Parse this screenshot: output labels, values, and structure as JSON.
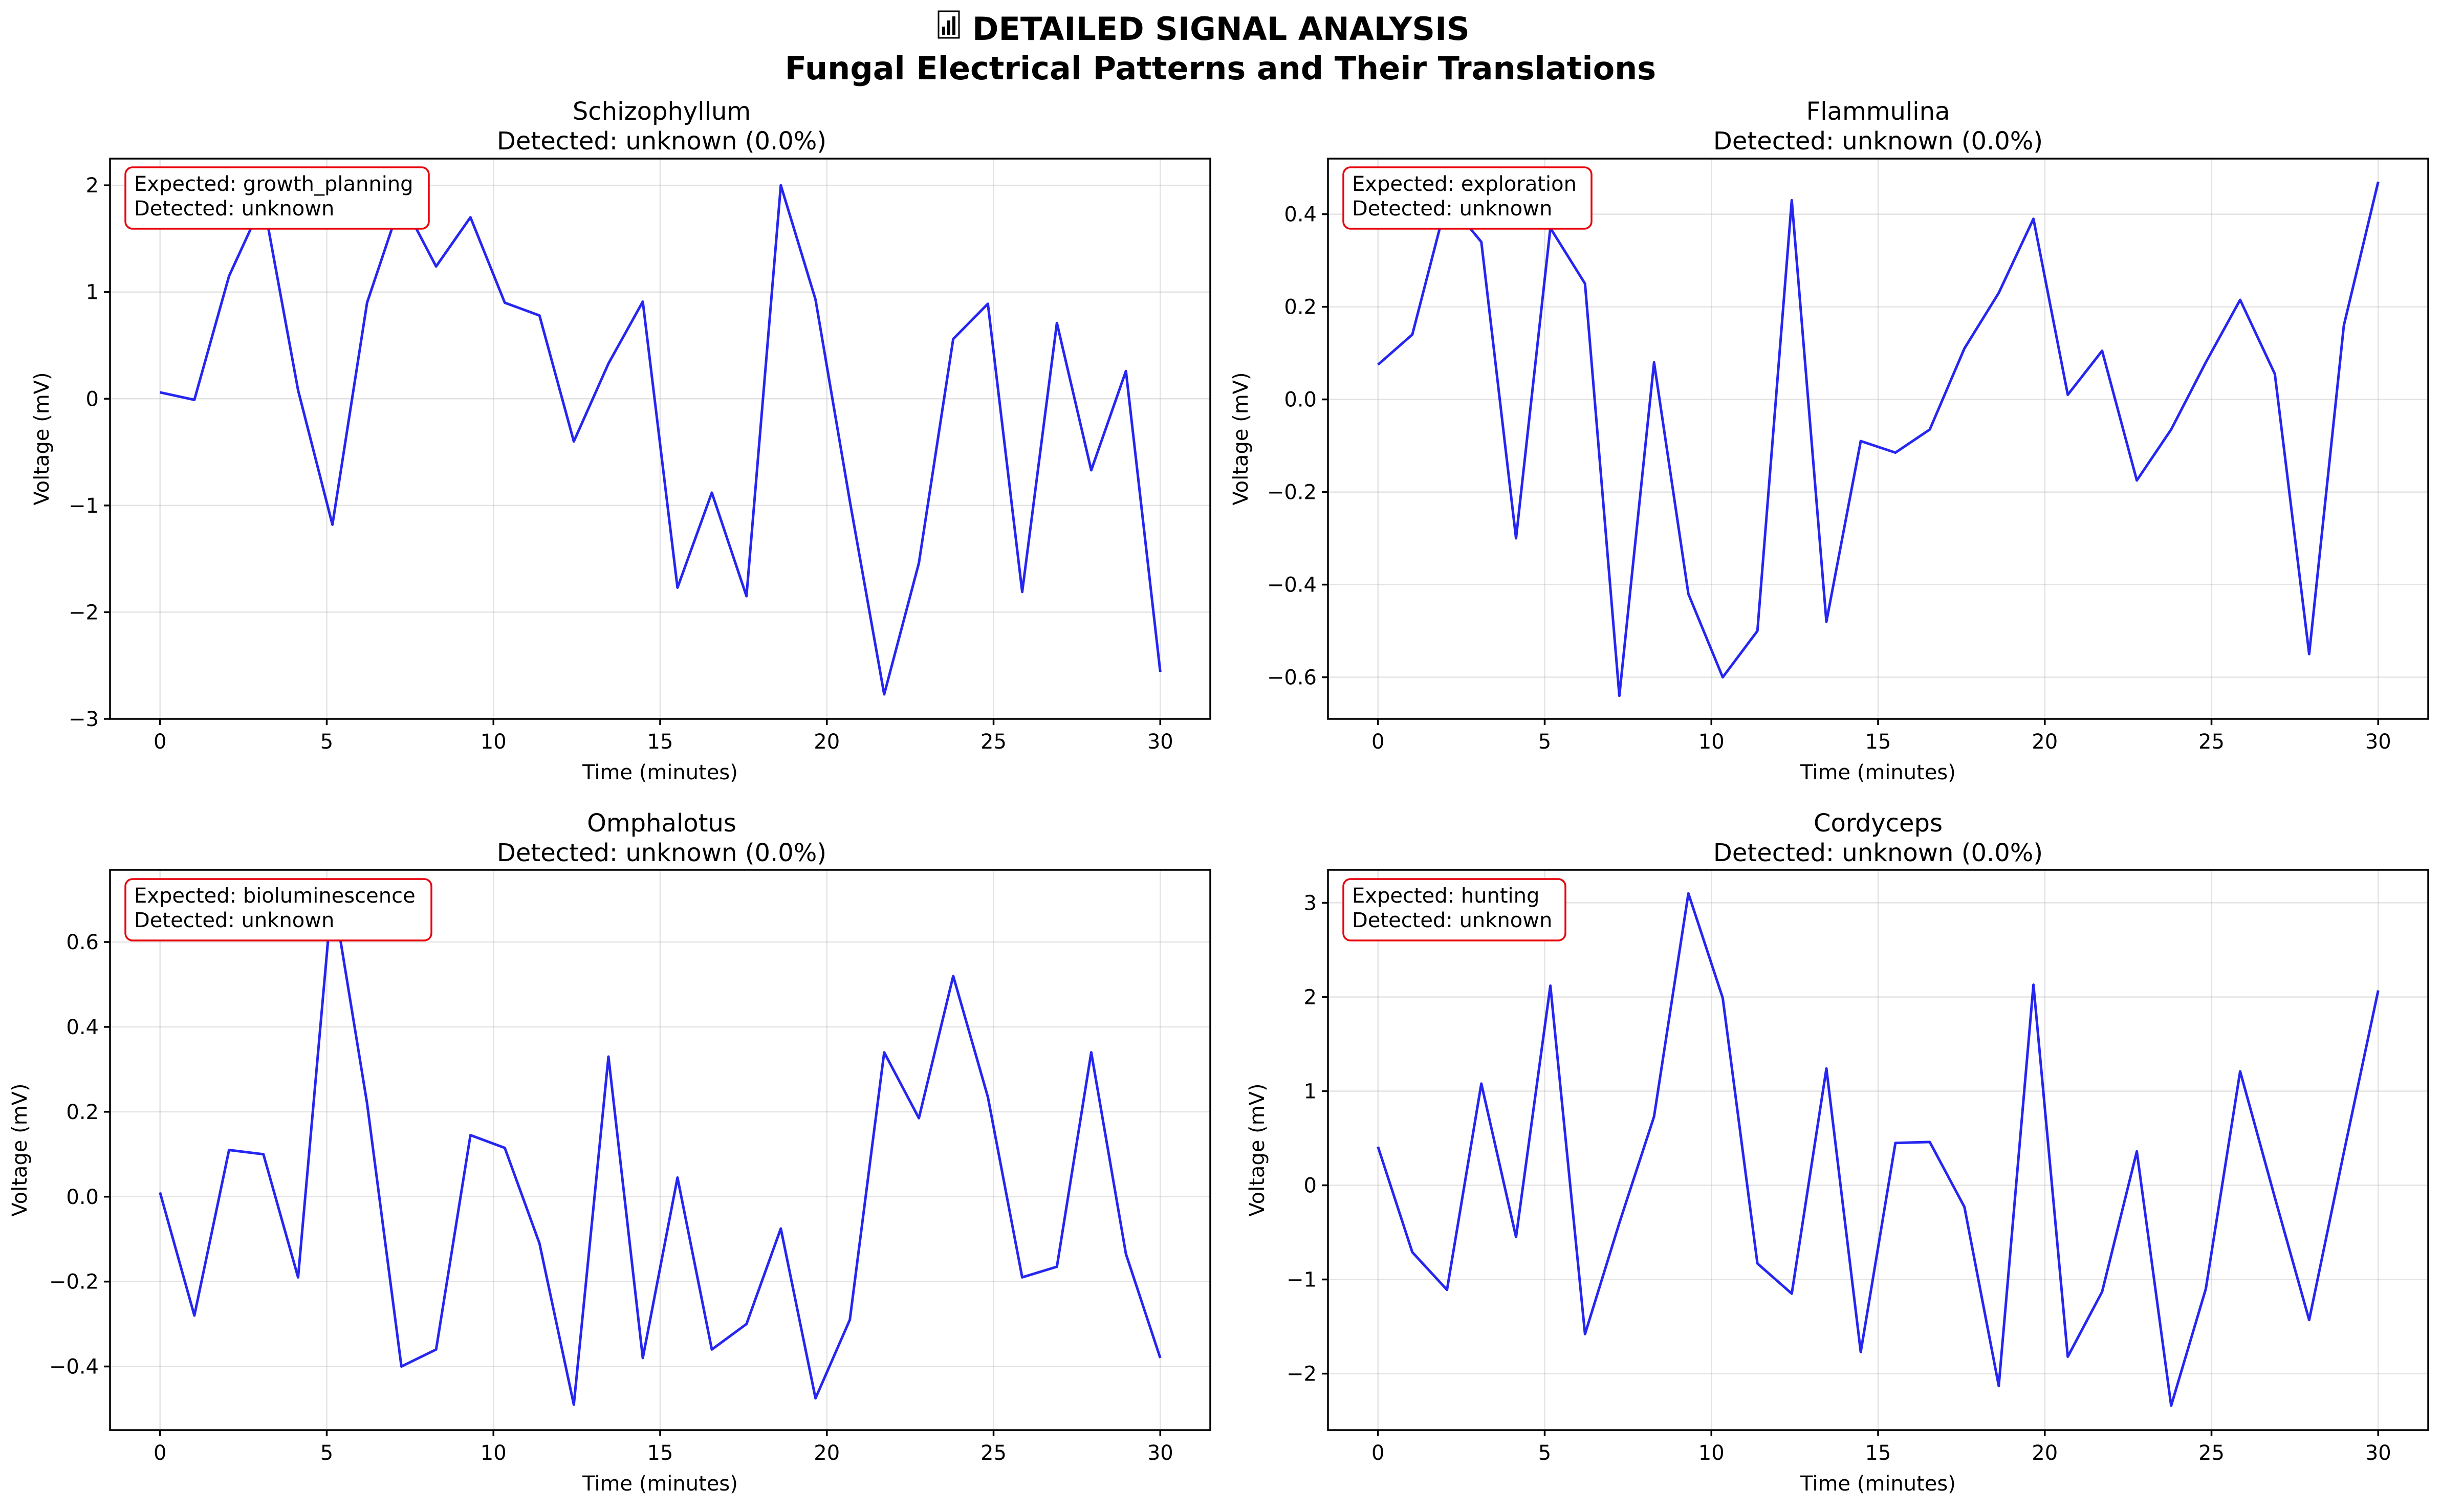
{
  "figure": {
    "title_icon": "chart-icon",
    "title_line1": "DETAILED SIGNAL ANALYSIS",
    "title_line2": "Fungal Electrical Patterns and Their Translations"
  },
  "colors": {
    "line": "#0000ee",
    "annotation_border": "#e8000b"
  },
  "chart_data": [
    {
      "type": "line",
      "title": "Schizophyllum",
      "subtitle": "Detected: unknown (0.0%)",
      "xlabel": "Time (minutes)",
      "ylabel": "Voltage (mV)",
      "xlim": [
        -1.5,
        31.5
      ],
      "ylim": [
        -3.0,
        2.25
      ],
      "xticks": [
        0,
        5,
        10,
        15,
        20,
        25,
        30
      ],
      "yticks": [
        -3,
        -2,
        -1,
        0,
        1,
        2
      ],
      "ytick_labels": [
        "−3",
        "−2",
        "−1",
        "0",
        "1",
        "2"
      ],
      "grid": true,
      "annotation": [
        "Expected: growth_planning",
        "Detected: unknown"
      ],
      "x": [
        0,
        1.03,
        2.07,
        3.1,
        4.14,
        5.17,
        6.21,
        7.24,
        8.28,
        9.31,
        10.34,
        11.38,
        12.41,
        13.45,
        14.48,
        15.52,
        16.55,
        17.59,
        18.62,
        19.66,
        20.69,
        21.72,
        22.76,
        23.79,
        24.83,
        25.86,
        26.9,
        27.93,
        28.97,
        30.0
      ],
      "y": [
        0.06,
        -0.01,
        1.15,
        1.85,
        0.08,
        -1.18,
        0.9,
        1.86,
        1.24,
        1.7,
        0.9,
        0.78,
        -0.4,
        0.33,
        0.91,
        -1.77,
        -0.88,
        -1.85,
        2.0,
        0.93,
        -0.96,
        -2.77,
        -1.54,
        0.56,
        0.89,
        -1.81,
        0.71,
        -0.67,
        0.26,
        -2.56
      ]
    },
    {
      "type": "line",
      "title": "Flammulina",
      "subtitle": "Detected: unknown (0.0%)",
      "xlabel": "Time (minutes)",
      "ylabel": "Voltage (mV)",
      "xlim": [
        -1.5,
        31.5
      ],
      "ylim": [
        -0.69,
        0.52
      ],
      "xticks": [
        0,
        5,
        10,
        15,
        20,
        25,
        30
      ],
      "yticks": [
        -0.6,
        -0.4,
        -0.2,
        0.0,
        0.2,
        0.4
      ],
      "ytick_labels": [
        "−0.6",
        "−0.4",
        "−0.2",
        "0.0",
        "0.2",
        "0.4"
      ],
      "grid": true,
      "annotation": [
        "Expected: exploration",
        "Detected: unknown"
      ],
      "x": [
        0,
        1.03,
        2.07,
        3.1,
        4.14,
        5.17,
        6.21,
        7.24,
        8.28,
        9.31,
        10.34,
        11.38,
        12.41,
        13.45,
        14.48,
        15.52,
        16.55,
        17.59,
        18.62,
        19.66,
        20.69,
        21.72,
        22.76,
        23.79,
        24.83,
        25.86,
        26.9,
        27.93,
        28.97,
        30.0
      ],
      "y": [
        0.075,
        0.14,
        0.43,
        0.34,
        -0.3,
        0.37,
        0.25,
        -0.64,
        0.08,
        -0.42,
        -0.6,
        -0.5,
        0.43,
        -0.48,
        -0.09,
        -0.115,
        -0.065,
        0.11,
        0.23,
        0.39,
        0.01,
        0.105,
        -0.175,
        -0.065,
        0.08,
        0.215,
        0.055,
        -0.55,
        0.16,
        0.47
      ]
    },
    {
      "type": "line",
      "title": "Omphalotus",
      "subtitle": "Detected: unknown (0.0%)",
      "xlabel": "Time (minutes)",
      "ylabel": "Voltage (mV)",
      "xlim": [
        -1.5,
        31.5
      ],
      "ylim": [
        -0.55,
        0.77
      ],
      "xticks": [
        0,
        5,
        10,
        15,
        20,
        25,
        30
      ],
      "yticks": [
        -0.4,
        -0.2,
        0.0,
        0.2,
        0.4,
        0.6
      ],
      "ytick_labels": [
        "−0.4",
        "−0.2",
        "0.0",
        "0.2",
        "0.4",
        "0.6"
      ],
      "grid": true,
      "annotation": [
        "Expected: bioluminescence",
        "Detected: unknown"
      ],
      "x": [
        0,
        1.03,
        2.07,
        3.1,
        4.14,
        5.17,
        6.21,
        7.24,
        8.28,
        9.31,
        10.34,
        11.38,
        12.41,
        13.45,
        14.48,
        15.52,
        16.55,
        17.59,
        18.62,
        19.66,
        20.69,
        21.72,
        22.76,
        23.79,
        24.83,
        25.86,
        26.9,
        27.93,
        28.97,
        30.0
      ],
      "y": [
        0.01,
        -0.28,
        0.11,
        0.1,
        -0.19,
        0.72,
        0.22,
        -0.4,
        -0.36,
        0.145,
        0.115,
        -0.11,
        -0.49,
        0.33,
        -0.38,
        0.045,
        -0.36,
        -0.3,
        -0.075,
        -0.475,
        -0.29,
        0.34,
        0.185,
        0.52,
        0.235,
        -0.19,
        -0.165,
        0.34,
        -0.135,
        -0.38
      ]
    },
    {
      "type": "line",
      "title": "Cordyceps",
      "subtitle": "Detected: unknown (0.0%)",
      "xlabel": "Time (minutes)",
      "ylabel": "Voltage (mV)",
      "xlim": [
        -1.5,
        31.5
      ],
      "ylim": [
        -2.6,
        3.35
      ],
      "xticks": [
        0,
        5,
        10,
        15,
        20,
        25,
        30
      ],
      "yticks": [
        -2,
        -1,
        0,
        1,
        2,
        3
      ],
      "ytick_labels": [
        "−2",
        "−1",
        "0",
        "1",
        "2",
        "3"
      ],
      "grid": true,
      "annotation": [
        "Expected: hunting",
        "Detected: unknown"
      ],
      "x": [
        0,
        1.03,
        2.07,
        3.1,
        4.14,
        5.17,
        6.21,
        7.24,
        8.28,
        9.31,
        10.34,
        11.38,
        12.41,
        13.45,
        14.48,
        15.52,
        16.55,
        17.59,
        18.62,
        19.66,
        20.69,
        21.72,
        22.76,
        23.79,
        24.83,
        25.86,
        26.9,
        27.93,
        28.97,
        30.0
      ],
      "y": [
        0.41,
        -0.71,
        -1.11,
        1.08,
        -0.55,
        2.12,
        -1.58,
        -0.4,
        0.73,
        3.1,
        1.99,
        -0.83,
        -1.15,
        1.24,
        -1.77,
        0.45,
        0.46,
        -0.23,
        -2.13,
        2.13,
        -1.82,
        -1.13,
        0.36,
        -2.34,
        -1.1,
        1.21,
        -0.13,
        -1.43,
        0.35,
        2.07
      ]
    }
  ]
}
